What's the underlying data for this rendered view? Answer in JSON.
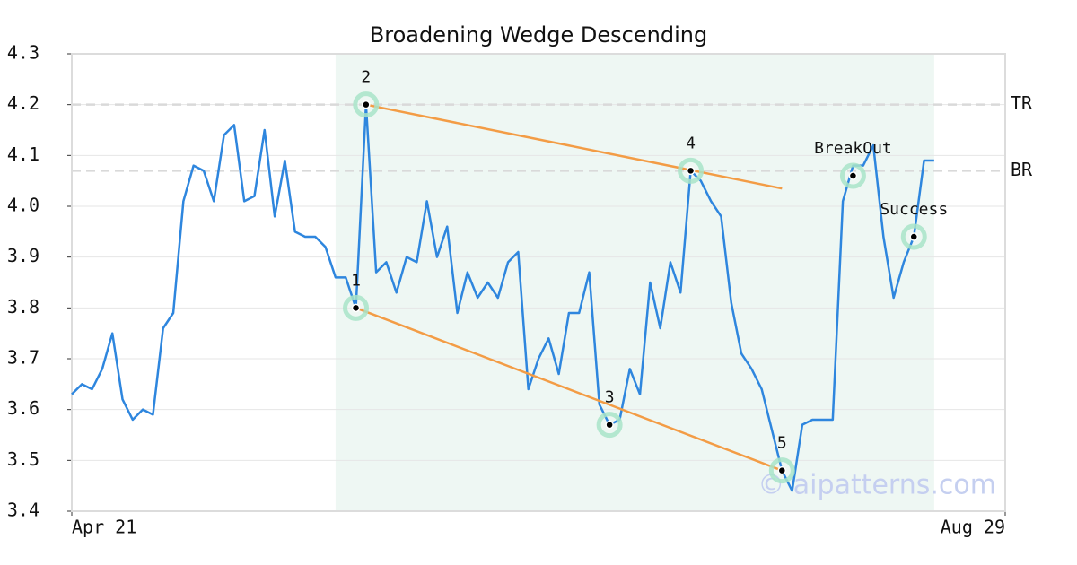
{
  "chart_data": {
    "type": "line",
    "title": "Broadening Wedge Descending",
    "x": [
      0,
      1,
      2,
      3,
      4,
      5,
      6,
      7,
      8,
      9,
      10,
      11,
      12,
      13,
      14,
      15,
      16,
      17,
      18,
      19,
      20,
      21,
      22,
      23,
      24,
      25,
      26,
      27,
      28,
      29,
      30,
      31,
      32,
      33,
      34,
      35,
      36,
      37,
      38,
      39,
      40,
      41,
      42,
      43,
      44,
      45,
      46,
      47,
      48,
      49,
      50,
      51,
      52,
      53,
      54,
      55,
      56,
      57,
      58,
      59,
      60,
      61,
      62,
      63,
      64,
      65,
      66,
      67,
      68,
      69,
      70,
      71,
      72,
      73,
      74,
      75,
      76,
      77,
      78,
      79,
      80,
      81,
      82,
      83,
      84,
      85
    ],
    "series": [
      {
        "color": "#2e86de",
        "values": [
          3.63,
          3.65,
          3.64,
          3.68,
          3.75,
          3.62,
          3.58,
          3.6,
          3.59,
          3.76,
          3.79,
          4.01,
          4.08,
          4.07,
          4.01,
          4.14,
          4.16,
          4.01,
          4.02,
          4.15,
          3.98,
          4.09,
          3.95,
          3.94,
          3.94,
          3.92,
          3.86,
          3.86,
          3.8,
          4.2,
          3.87,
          3.89,
          3.83,
          3.9,
          3.89,
          4.01,
          3.9,
          3.96,
          3.79,
          3.87,
          3.82,
          3.85,
          3.82,
          3.89,
          3.91,
          3.64,
          3.7,
          3.74,
          3.67,
          3.79,
          3.79,
          3.87,
          3.61,
          3.57,
          3.58,
          3.68,
          3.63,
          3.85,
          3.76,
          3.89,
          3.83,
          4.07,
          4.05,
          4.01,
          3.98,
          3.81,
          3.71,
          3.68,
          3.64,
          3.56,
          3.48,
          3.44,
          3.57,
          3.58,
          3.58,
          3.58,
          4.01,
          4.08,
          4.08,
          4.12,
          3.94,
          3.82,
          3.89,
          3.94,
          4.09,
          4.09
        ]
      }
    ],
    "xlim": [
      0,
      92
    ],
    "xticks": [
      {
        "value": 0,
        "label": "Apr 21"
      },
      {
        "value": 92,
        "label": "Aug 29"
      }
    ],
    "ylim": [
      3.4,
      4.3
    ],
    "yticks": [
      3.4,
      3.5,
      3.6,
      3.7,
      3.8,
      3.9,
      {
        "value": 4,
        "label": "4.0"
      },
      4.1,
      4.2,
      4.3
    ],
    "grid": true,
    "highlight": {
      "xlim": [
        26,
        85
      ],
      "color": "#eef7f3"
    },
    "levels": [
      {
        "label": "TR",
        "value": 4.2
      },
      {
        "label": "BR",
        "value": 4.07
      }
    ],
    "trendlines": [
      {
        "color": "#f39c45",
        "x": [
          29,
          70
        ],
        "y": [
          4.2,
          4.035
        ]
      },
      {
        "color": "#f39c45",
        "x": [
          28,
          70
        ],
        "y": [
          3.8,
          3.48
        ]
      }
    ],
    "points": [
      {
        "label": "1",
        "x": 28,
        "y": 3.8
      },
      {
        "label": "2",
        "x": 29,
        "y": 4.2
      },
      {
        "label": "3",
        "x": 53,
        "y": 3.57
      },
      {
        "label": "4",
        "x": 61,
        "y": 4.07
      },
      {
        "label": "5",
        "x": 70,
        "y": 3.48
      },
      {
        "label": "BreakOut",
        "x": 77,
        "y": 4.06
      },
      {
        "label": "Success",
        "x": 83,
        "y": 3.94
      }
    ],
    "watermark": "© aipatterns.com"
  }
}
